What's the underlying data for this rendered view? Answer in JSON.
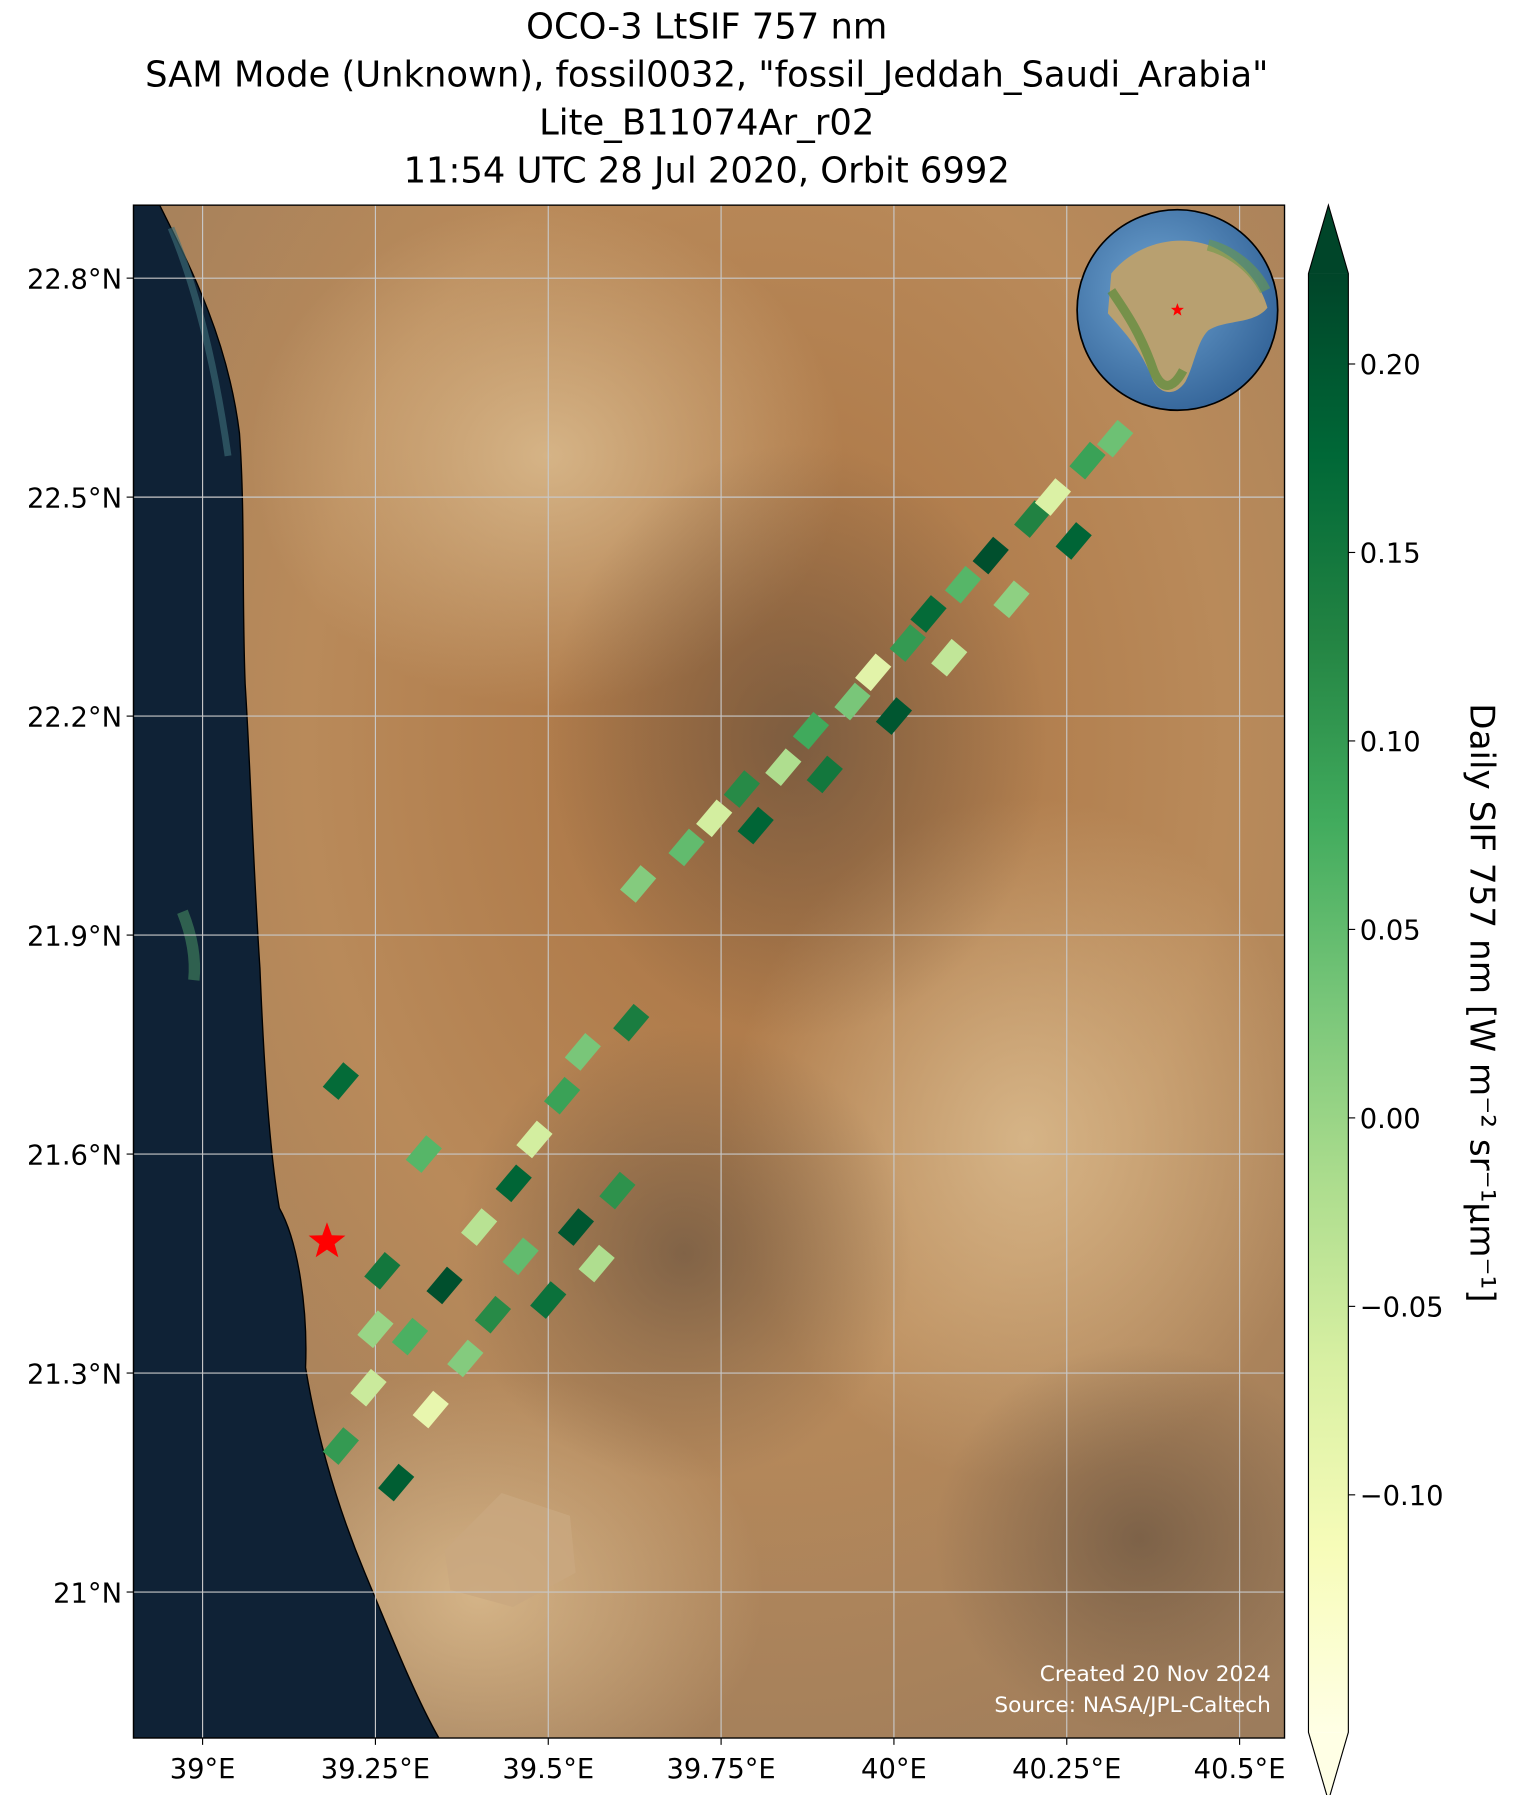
{
  "chart_data": {
    "type": "map",
    "title_lines": [
      "OCO-3 LtSIF 757 nm",
      "SAM Mode (Unknown), fossil0032, \"fossil_Jeddah_Saudi_Arabia\"",
      "Lite_B11074Ar_r02",
      "11:54 UTC 28 Jul 2020, Orbit 6992"
    ],
    "xlim": [
      38.9,
      40.565
    ],
    "ylim": [
      20.8,
      22.9
    ],
    "xticks": [
      {
        "value": 39,
        "label": "39°E"
      },
      {
        "value": 39.25,
        "label": "39.25°E"
      },
      {
        "value": 39.5,
        "label": "39.5°E"
      },
      {
        "value": 39.75,
        "label": "39.75°E"
      },
      {
        "value": 40,
        "label": "40°E"
      },
      {
        "value": 40.25,
        "label": "40.25°E"
      },
      {
        "value": 40.5,
        "label": "40.5°E"
      }
    ],
    "yticks": [
      {
        "value": 21,
        "label": "21°N"
      },
      {
        "value": 21.3,
        "label": "21.3°N"
      },
      {
        "value": 21.6,
        "label": "21.6°N"
      },
      {
        "value": 21.9,
        "label": "21.9°N"
      },
      {
        "value": 22.2,
        "label": "22.2°N"
      },
      {
        "value": 22.5,
        "label": "22.5°N"
      },
      {
        "value": 22.8,
        "label": "22.8°N"
      }
    ],
    "grid": true,
    "x": [
      39.63,
      39.7,
      39.74,
      39.78,
      39.8,
      39.84,
      39.88,
      39.9,
      39.94,
      39.97,
      40.0,
      40.02,
      40.05,
      40.08,
      40.1,
      40.14,
      40.17,
      40.2,
      40.23,
      40.26,
      40.28,
      40.32,
      39.2,
      39.24,
      39.28,
      39.3,
      39.33,
      39.26,
      39.35,
      39.38,
      39.4,
      39.42,
      39.45,
      39.46,
      39.48,
      39.5,
      39.52,
      39.54,
      39.55,
      39.57,
      39.6,
      39.62,
      39.32,
      39.25,
      39.2
    ],
    "y": [
      21.97,
      22.02,
      22.06,
      22.1,
      22.05,
      22.13,
      22.18,
      22.12,
      22.22,
      22.26,
      22.2,
      22.3,
      22.34,
      22.28,
      22.38,
      22.42,
      22.36,
      22.47,
      22.5,
      22.44,
      22.55,
      22.58,
      21.2,
      21.28,
      21.15,
      21.35,
      21.25,
      21.44,
      21.42,
      21.32,
      21.5,
      21.38,
      21.56,
      21.46,
      21.62,
      21.4,
      21.68,
      21.5,
      21.74,
      21.45,
      21.55,
      21.78,
      21.6,
      21.36,
      21.7
    ],
    "values": [
      0.02,
      0.05,
      -0.06,
      0.12,
      0.18,
      -0.02,
      0.08,
      0.15,
      0.03,
      -0.08,
      0.2,
      0.1,
      0.17,
      -0.04,
      0.06,
      0.21,
      0.01,
      0.13,
      -0.07,
      0.18,
      0.09,
      0.04,
      0.1,
      -0.05,
      0.19,
      0.07,
      -0.09,
      0.15,
      0.21,
      0.02,
      -0.03,
      0.12,
      0.18,
      0.05,
      -0.06,
      0.16,
      0.09,
      0.2,
      0.03,
      -0.02,
      0.11,
      0.14,
      0.06,
      0.0,
      0.17
    ],
    "site": [
      39.18,
      21.48
    ],
    "site_color": "#ff0000",
    "colormap": [
      "#ffffe5",
      "#f7fcb9",
      "#d9f0a3",
      "#addd8e",
      "#78c679",
      "#41ab5d",
      "#238443",
      "#006837",
      "#004529"
    ],
    "clim": [
      -0.163,
      0.224
    ],
    "cticks": [
      {
        "value": -0.1,
        "label": "−0.10"
      },
      {
        "value": -0.05,
        "label": "−0.05"
      },
      {
        "value": 0,
        "label": "0.00"
      },
      {
        "value": 0.05,
        "label": "0.05"
      },
      {
        "value": 0.1,
        "label": "0.10"
      },
      {
        "value": 0.15,
        "label": "0.15"
      },
      {
        "value": 0.2,
        "label": "0.20"
      }
    ],
    "colorbar_label": "Daily SIF 757 nm [W m⁻² sr⁻¹μm⁻¹]",
    "credits": [
      "Created 20 Nov 2024",
      "Source: NASA/JPL-Caltech"
    ]
  }
}
